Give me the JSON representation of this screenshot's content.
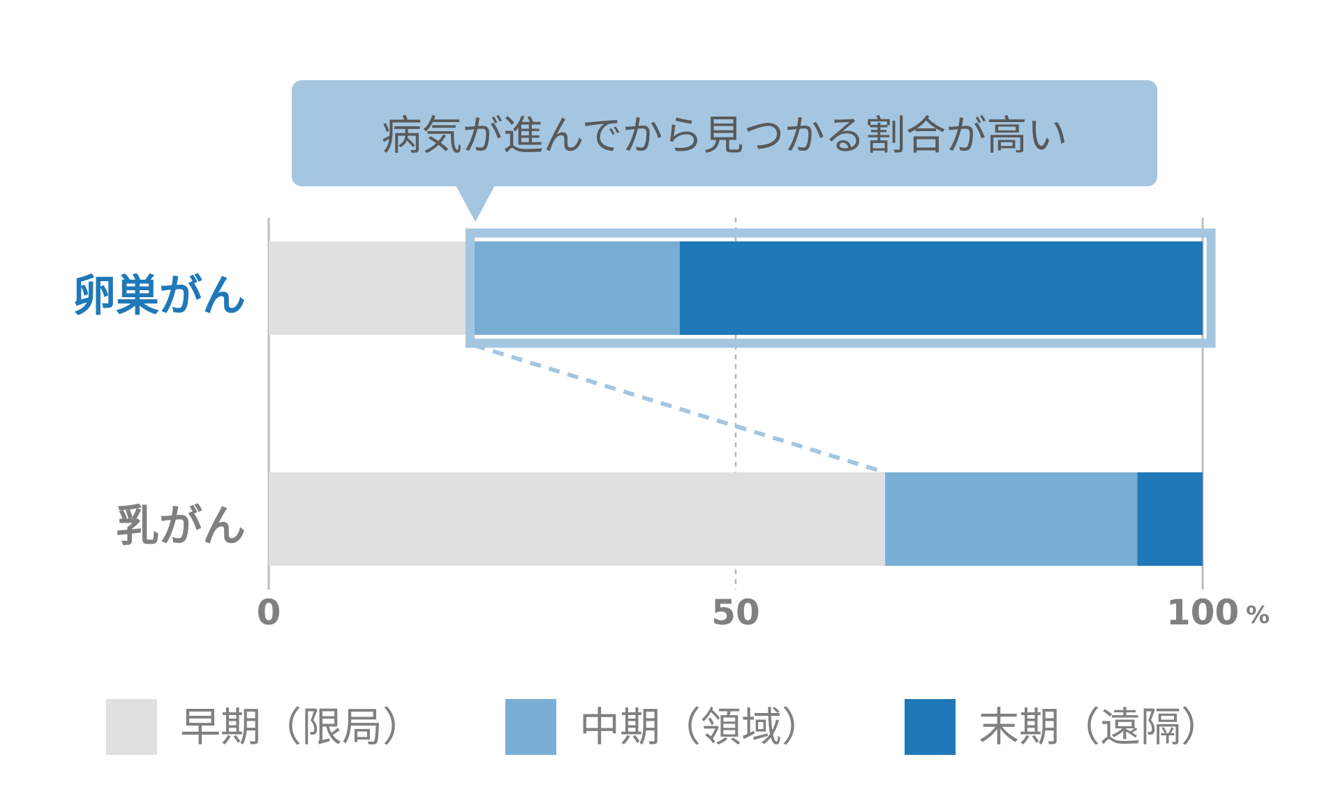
{
  "chart_data": {
    "type": "bar",
    "orientation": "horizontal",
    "stacked": true,
    "categories": [
      "卵巣がん",
      "乳がん"
    ],
    "series": [
      {
        "name": "早期（限局）",
        "values": [
          22,
          66
        ],
        "color": "#e0e0e0"
      },
      {
        "name": "中期（領域）",
        "values": [
          22,
          27
        ],
        "color": "#78aed4"
      },
      {
        "name": "末期（遠隔）",
        "values": [
          56,
          7
        ],
        "color": "#1f78b7"
      }
    ],
    "category_colors": [
      "#1f78b7",
      "#808080"
    ],
    "xlim": [
      0,
      100
    ],
    "x_ticks": [
      "0",
      "50",
      "100"
    ],
    "x_unit": "%",
    "grid": "dashed line at 50",
    "legend_position": "bottom",
    "annotation": {
      "text": "病気が進んでから見つかる割合が高い",
      "target": "卵巣がん",
      "color": "#a4c6e1"
    }
  }
}
